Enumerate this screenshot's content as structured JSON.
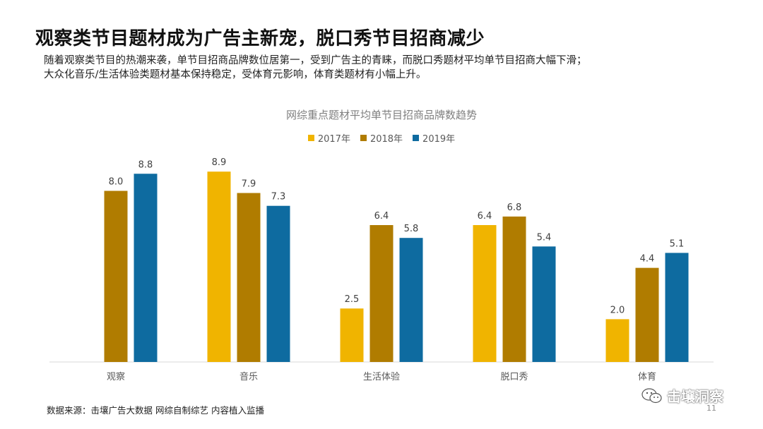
{
  "title": "观察类节目题材成为广告主新宠，脱口秀节目招商减少",
  "subtitle_lines": [
    "随着观察类节目的热潮来袭，单节目招商品牌数位居第一，受到广告主的青睐，而脱口秀题材平均单节目招商大幅下滑；",
    "大众化音乐/生活体验类题材基本保持稳定，受体育元影响，体育类题材有小幅上升。"
  ],
  "source": "数据来源：击壤广告大数据 网综自制综艺 内容植入监播",
  "watermark": {
    "text": "击壤洞察",
    "icon": "wechat-icon"
  },
  "page_number": "11",
  "chart_data": {
    "type": "bar",
    "title": "网综重点题材平均单节目招商品牌数趋势",
    "categories": [
      "观察",
      "音乐",
      "生活体验",
      "脱口秀",
      "体育"
    ],
    "series": [
      {
        "name": "2017年",
        "color": "#F0B400",
        "values": [
          null,
          8.9,
          2.5,
          6.4,
          2.0
        ]
      },
      {
        "name": "2018年",
        "color": "#B07C00",
        "values": [
          8.0,
          7.9,
          6.4,
          6.8,
          4.4
        ]
      },
      {
        "name": "2019年",
        "color": "#0E6BA0",
        "values": [
          8.8,
          7.3,
          5.8,
          5.4,
          5.1
        ]
      }
    ],
    "ylim": [
      0,
      9.6
    ],
    "legend_position": "top-center",
    "grid": false,
    "xlabel": "",
    "ylabel": ""
  }
}
